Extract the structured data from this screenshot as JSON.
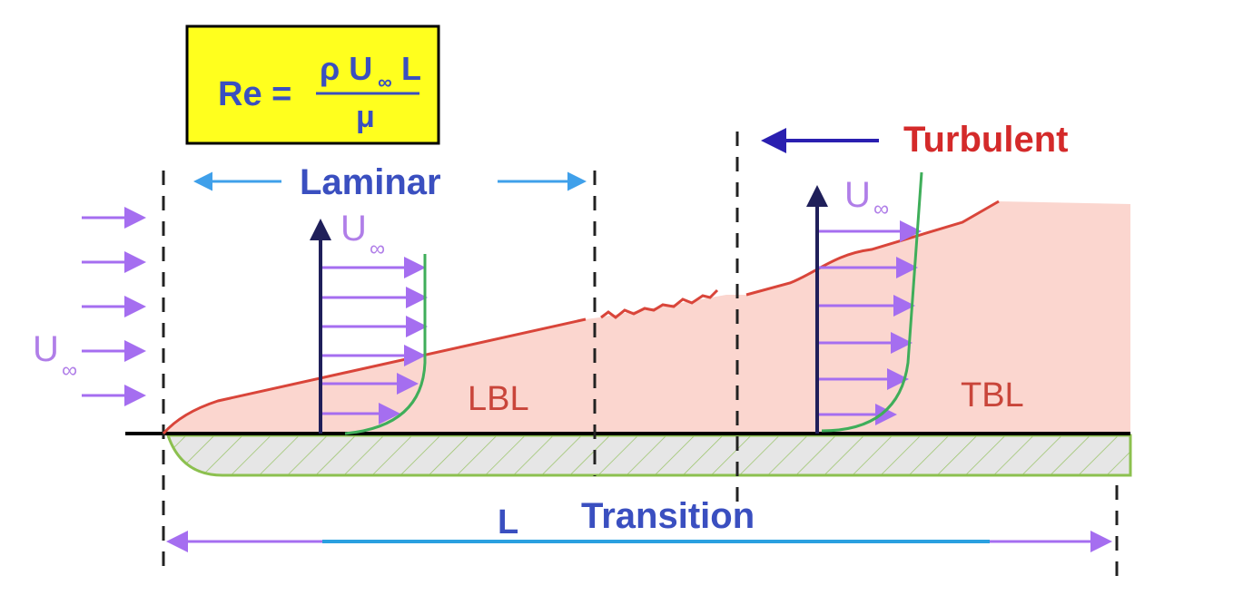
{
  "formula": {
    "lhs": "Re =",
    "numerator": "ρ U",
    "numerator_subscript": "∞",
    "numerator_end": "L",
    "denominator": "μ"
  },
  "regions": {
    "laminar": "Laminar",
    "turbulent": "Turbulent",
    "transition": "Transition"
  },
  "layers": {
    "lbl": "LBL",
    "tbl": "TBL"
  },
  "length": "L",
  "velocity_labels": [
    {
      "symbol": "U",
      "subscript": "∞"
    },
    {
      "symbol": "U",
      "subscript": "∞"
    },
    {
      "symbol": "U",
      "subscript": "∞"
    }
  ]
}
